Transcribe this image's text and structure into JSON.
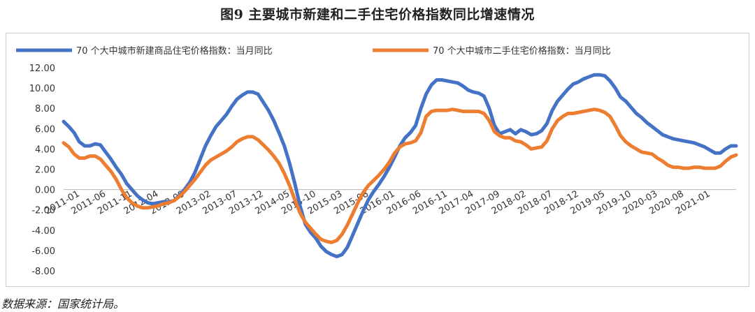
{
  "title": "图9 主要城市新建和二手住宅价格指数同比增速情况",
  "source": "数据来源：国家统计局。",
  "chart_data": {
    "type": "line",
    "ylim": [
      -8,
      12
    ],
    "yticks": [
      "12.00",
      "10.00",
      "8.00",
      "6.00",
      "4.00",
      "2.00",
      "0.00",
      "-2.00",
      "-4.00",
      "-6.00",
      "-8.00"
    ],
    "ytick_values": [
      12,
      10,
      8,
      6,
      4,
      2,
      0,
      -2,
      -4,
      -6,
      -8
    ],
    "x_labels": [
      "2011-01",
      "2011-06",
      "2011-11",
      "2012-04",
      "2012-09",
      "2013-02",
      "2013-07",
      "2013-12",
      "2014-05",
      "2014-10",
      "2015-03",
      "2015-08",
      "2016-01",
      "2016-06",
      "2016-11",
      "2017-04",
      "2017-09",
      "2018-02",
      "2018-07",
      "2018-12",
      "2019-05",
      "2019-10",
      "2020-03",
      "2020-08",
      "2021-01"
    ],
    "legend_position": "top",
    "grid": false,
    "series": [
      {
        "name": "70 个大中城市新建商品住宅价格指数：当月同比",
        "color": "#4472C4",
        "values": [
          6.7,
          6.2,
          5.6,
          4.7,
          4.3,
          4.3,
          4.5,
          4.4,
          3.7,
          3.0,
          2.2,
          1.5,
          0.6,
          0.0,
          -0.6,
          -1.0,
          -1.3,
          -1.4,
          -1.3,
          -1.2,
          -1.2,
          -1.1,
          -0.6,
          0.0,
          0.7,
          1.7,
          3.0,
          4.3,
          5.3,
          6.2,
          6.8,
          7.4,
          8.2,
          8.9,
          9.3,
          9.6,
          9.6,
          9.4,
          8.6,
          7.8,
          6.8,
          5.6,
          4.3,
          2.6,
          0.6,
          -1.6,
          -3.4,
          -4.2,
          -4.8,
          -5.6,
          -6.1,
          -6.4,
          -6.6,
          -6.4,
          -5.7,
          -4.5,
          -3.3,
          -2.1,
          -1.0,
          -0.2,
          0.5,
          1.3,
          2.2,
          3.2,
          4.3,
          5.1,
          5.6,
          6.3,
          8.0,
          9.4,
          10.3,
          10.8,
          10.8,
          10.7,
          10.6,
          10.5,
          10.2,
          9.8,
          9.6,
          9.5,
          9.2,
          8.0,
          6.3,
          5.5,
          5.7,
          5.9,
          5.5,
          5.9,
          5.7,
          5.4,
          5.5,
          5.8,
          6.5,
          7.8,
          8.7,
          9.3,
          9.9,
          10.4,
          10.6,
          10.9,
          11.1,
          11.3,
          11.3,
          11.2,
          10.7,
          10.0,
          9.1,
          8.7,
          8.1,
          7.5,
          7.1,
          6.6,
          6.2,
          5.8,
          5.4,
          5.2,
          5.0,
          4.9,
          4.8,
          4.7,
          4.6,
          4.4,
          4.2,
          3.9,
          3.6,
          3.6,
          4.0,
          4.3,
          4.3
        ]
      },
      {
        "name": "70 个大中城市二手住宅价格指数：当月同比",
        "color": "#ED7D31",
        "values": [
          4.6,
          4.2,
          3.5,
          3.1,
          3.1,
          3.3,
          3.3,
          3.0,
          2.4,
          1.8,
          1.0,
          0.0,
          -0.8,
          -1.3,
          -1.6,
          -1.8,
          -1.8,
          -1.7,
          -1.6,
          -1.4,
          -1.3,
          -1.1,
          -0.7,
          -0.2,
          0.4,
          1.0,
          1.7,
          2.4,
          2.9,
          3.2,
          3.5,
          3.8,
          4.2,
          4.7,
          5.0,
          5.2,
          5.2,
          4.9,
          4.4,
          3.9,
          3.3,
          2.6,
          1.6,
          0.4,
          -1.0,
          -2.3,
          -3.2,
          -3.8,
          -4.4,
          -4.9,
          -5.1,
          -5.2,
          -5.0,
          -4.4,
          -3.5,
          -2.4,
          -1.3,
          -0.3,
          0.4,
          0.9,
          1.4,
          2.0,
          2.7,
          3.6,
          4.2,
          4.5,
          4.6,
          4.8,
          5.6,
          7.2,
          7.7,
          7.8,
          7.8,
          7.8,
          7.9,
          7.8,
          7.7,
          7.7,
          7.7,
          7.7,
          7.5,
          6.8,
          5.7,
          5.3,
          5.1,
          5.1,
          4.8,
          4.7,
          4.4,
          4.0,
          4.1,
          4.2,
          4.8,
          6.0,
          6.8,
          7.2,
          7.5,
          7.5,
          7.6,
          7.7,
          7.8,
          7.9,
          7.8,
          7.6,
          7.2,
          6.3,
          5.3,
          4.7,
          4.3,
          4.0,
          3.7,
          3.6,
          3.5,
          3.1,
          2.8,
          2.4,
          2.2,
          2.2,
          2.1,
          2.1,
          2.2,
          2.2,
          2.1,
          2.1,
          2.1,
          2.3,
          2.8,
          3.2,
          3.4
        ]
      }
    ]
  }
}
